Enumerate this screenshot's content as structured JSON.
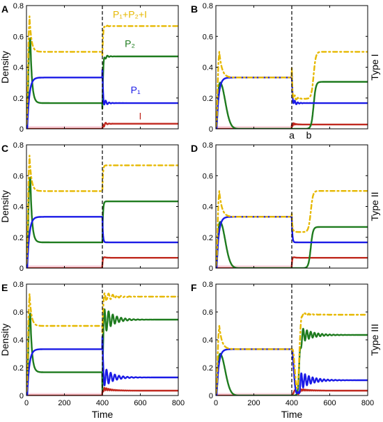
{
  "figure": {
    "x_axis_label": "Time",
    "y_axis_label": "Density"
  },
  "colors": {
    "total": "#e6b800",
    "P2": "#1e7b1e",
    "P1": "#1a1ae6",
    "I": "#c0281e",
    "pink": "#f4b6c8"
  },
  "chart_data": [
    {
      "type": "line",
      "panel": "A",
      "type_label": "",
      "xlim": [
        0,
        800
      ],
      "ylim": [
        0,
        0.8
      ],
      "xticks": [
        0,
        200,
        400,
        600,
        800
      ],
      "yticks": [
        0,
        0.2,
        0.4,
        0.6,
        0.8
      ],
      "show_x_ticklabels": false,
      "show_y_ticklabels": true,
      "show_xlabel": false,
      "show_ylabel": true,
      "vline": 400,
      "style": "A",
      "baseline": 0.5,
      "first_phase": {
        "P1": 0.333,
        "P2": 0.167,
        "I": 0,
        "total": 0.5
      },
      "second_phase": {
        "P1": 0.167,
        "P2": 0.47,
        "I": 0.033,
        "total": 0.667
      },
      "annotations": [
        {
          "text": "P₁+P₂+I",
          "series": "total",
          "x": 545,
          "y": 0.72
        },
        {
          "text": "P₂",
          "series": "P2",
          "x": 545,
          "y": 0.53
        },
        {
          "text": "P₁",
          "series": "P1",
          "x": 575,
          "y": 0.23
        },
        {
          "text": "I",
          "series": "I",
          "x": 600,
          "y": 0.06
        }
      ]
    },
    {
      "type": "line",
      "panel": "B",
      "type_label": "Type I",
      "xlim": [
        0,
        800
      ],
      "ylim": [
        0,
        0.8
      ],
      "xticks": [
        0,
        200,
        400,
        600,
        800
      ],
      "yticks": [
        0,
        0.2,
        0.4,
        0.6,
        0.8
      ],
      "show_x_ticklabels": false,
      "show_y_ticklabels": true,
      "show_xlabel": false,
      "show_ylabel": false,
      "vline": 400,
      "style": "B",
      "baseline": 0.5,
      "first_phase": {
        "P1": 0.333,
        "P2": 0.0,
        "I": 0,
        "total": 0.333
      },
      "second_phase": {
        "P1": 0.167,
        "P2": 0.305,
        "I": 0.028,
        "total": 0.5
      },
      "annotations": [
        {
          "text": "a",
          "series": "",
          "x": 400,
          "y": -0.03
        },
        {
          "text": "b",
          "series": "",
          "x": 490,
          "y": -0.03
        }
      ]
    },
    {
      "type": "line",
      "panel": "C",
      "type_label": "",
      "xlim": [
        0,
        800
      ],
      "ylim": [
        0,
        0.8
      ],
      "xticks": [
        0,
        200,
        400,
        600,
        800
      ],
      "yticks": [
        0,
        0.2,
        0.4,
        0.6,
        0.8
      ],
      "show_x_ticklabels": false,
      "show_y_ticklabels": true,
      "show_xlabel": false,
      "show_ylabel": true,
      "vline": 400,
      "style": "C",
      "baseline": 0.5,
      "first_phase": {
        "P1": 0.333,
        "P2": 0.167,
        "I": 0,
        "total": 0.5
      },
      "second_phase": {
        "P1": 0.167,
        "P2": 0.433,
        "I": 0.067,
        "total": 0.667
      },
      "annotations": []
    },
    {
      "type": "line",
      "panel": "D",
      "type_label": "Type II",
      "xlim": [
        0,
        800
      ],
      "ylim": [
        0,
        0.8
      ],
      "xticks": [
        0,
        200,
        400,
        600,
        800
      ],
      "yticks": [
        0,
        0.2,
        0.4,
        0.6,
        0.8
      ],
      "show_x_ticklabels": false,
      "show_y_ticklabels": true,
      "show_xlabel": false,
      "show_ylabel": false,
      "vline": 400,
      "style": "D",
      "baseline": 0.5,
      "first_phase": {
        "P1": 0.333,
        "P2": 0.0,
        "I": 0,
        "total": 0.333
      },
      "second_phase": {
        "P1": 0.167,
        "P2": 0.267,
        "I": 0.067,
        "total": 0.5
      },
      "annotations": []
    },
    {
      "type": "line",
      "panel": "E",
      "type_label": "",
      "xlim": [
        0,
        800
      ],
      "ylim": [
        0,
        0.8
      ],
      "xticks": [
        0,
        200,
        400,
        600,
        800
      ],
      "yticks": [
        0,
        0.2,
        0.4,
        0.6,
        0.8
      ],
      "show_x_ticklabels": true,
      "show_y_ticklabels": true,
      "show_xlabel": true,
      "show_ylabel": true,
      "vline": 400,
      "style": "E",
      "baseline": 0.5,
      "first_phase": {
        "P1": 0.333,
        "P2": 0.167,
        "I": 0,
        "total": 0.5
      },
      "second_phase": {
        "P1": 0.13,
        "P2": 0.545,
        "I": 0.035,
        "total": 0.71
      },
      "annotations": []
    },
    {
      "type": "line",
      "panel": "F",
      "type_label": "Type III",
      "xlim": [
        0,
        800
      ],
      "ylim": [
        0,
        0.8
      ],
      "xticks": [
        0,
        200,
        400,
        600,
        800
      ],
      "yticks": [
        0,
        0.2,
        0.4,
        0.6,
        0.8
      ],
      "show_x_ticklabels": true,
      "show_y_ticklabels": true,
      "show_xlabel": true,
      "show_ylabel": false,
      "vline": 400,
      "style": "F",
      "baseline": 0.5,
      "first_phase": {
        "P1": 0.333,
        "P2": 0.0,
        "I": 0,
        "total": 0.333
      },
      "second_phase": {
        "P1": 0.11,
        "P2": 0.435,
        "I": 0.035,
        "total": 0.58
      },
      "annotations": []
    }
  ]
}
